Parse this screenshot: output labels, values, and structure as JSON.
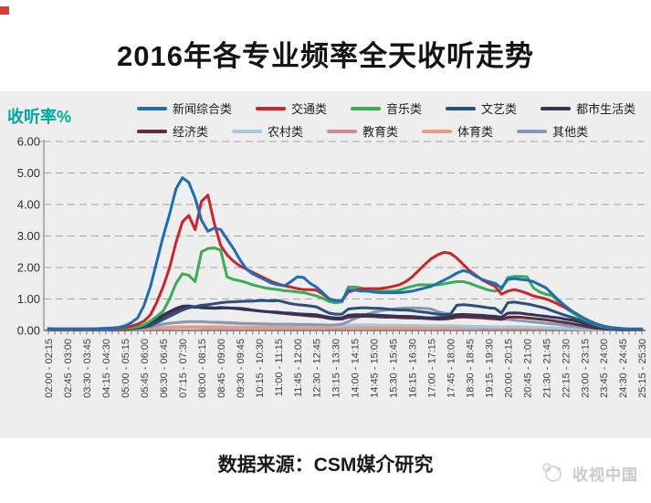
{
  "page": {
    "title": "2016年各专业频率全天收听走势",
    "y_axis_label": "收听率%",
    "source_note": "数据来源：CSM媒介研究",
    "watermark": "收视中国"
  },
  "chart_data": {
    "type": "line",
    "title": "2016年各专业频率全天收听走势",
    "ylabel": "收听率%",
    "ylim": [
      0,
      6
    ],
    "y_ticks": [
      "0.00",
      "1.00",
      "2.00",
      "3.00",
      "4.00",
      "5.00",
      "6.00"
    ],
    "grid": "horizontal-dashed",
    "legend_position": "top",
    "x_unit": "15-minute time slots from 02:00 to 25:30, tick label shown every 3rd point",
    "points_per_series": 94,
    "x_tick_labels": [
      "02:00 - 02:15",
      "02:45 - 03:00",
      "03:30 - 03:45",
      "04:15 - 04:30",
      "05:00 - 05:15",
      "05:45 - 06:00",
      "06:30 - 06:45",
      "07:15 - 07:30",
      "08:00 - 08:15",
      "08:45 - 09:00",
      "09:30 - 09:45",
      "10:15 - 10:30",
      "11:00 - 11:15",
      "11:45 - 12:00",
      "12:30 - 12:45",
      "13:15 - 13:30",
      "14:00 - 14:15",
      "14:45 - 15:00",
      "15:30 - 15:45",
      "16:15 - 16:30",
      "17:00 - 17:15",
      "17:45 - 18:00",
      "18:30 - 18:45",
      "19:15 - 19:30",
      "20:00 - 20:15",
      "20:45 - 21:00",
      "21:30 - 21:45",
      "22:15 - 22:30",
      "23:00 - 23:15",
      "23:45 - 24:00",
      "24:30 - 24:45",
      "25:15 - 25:30"
    ],
    "series": [
      {
        "id": "news",
        "name": "新闻综合类",
        "color": "#1E6CB4",
        "values": [
          0.06,
          0.05,
          0.05,
          0.05,
          0.05,
          0.05,
          0.05,
          0.05,
          0.06,
          0.07,
          0.08,
          0.1,
          0.15,
          0.25,
          0.4,
          0.8,
          1.4,
          2.2,
          3.0,
          3.7,
          4.5,
          4.85,
          4.7,
          4.2,
          3.5,
          3.15,
          3.25,
          3.2,
          2.9,
          2.6,
          2.25,
          1.95,
          1.8,
          1.7,
          1.6,
          1.5,
          1.45,
          1.42,
          1.55,
          1.7,
          1.68,
          1.5,
          1.38,
          1.2,
          1.0,
          0.95,
          0.95,
          1.28,
          1.28,
          1.25,
          1.25,
          1.22,
          1.2,
          1.2,
          1.2,
          1.2,
          1.22,
          1.25,
          1.3,
          1.35,
          1.4,
          1.5,
          1.6,
          1.7,
          1.82,
          1.9,
          1.85,
          1.72,
          1.62,
          1.55,
          1.5,
          1.35,
          1.62,
          1.65,
          1.62,
          1.6,
          1.55,
          1.45,
          1.35,
          1.15,
          0.95,
          0.78,
          0.62,
          0.5,
          0.38,
          0.28,
          0.2,
          0.14,
          0.1,
          0.08,
          0.06,
          0.05,
          0.05,
          0.05
        ]
      },
      {
        "id": "traffic",
        "name": "交通类",
        "color": "#C9252C",
        "values": [
          0.05,
          0.05,
          0.05,
          0.05,
          0.05,
          0.05,
          0.05,
          0.05,
          0.05,
          0.06,
          0.07,
          0.08,
          0.1,
          0.14,
          0.2,
          0.3,
          0.5,
          0.9,
          1.4,
          2.0,
          2.8,
          3.45,
          3.65,
          3.2,
          4.1,
          4.3,
          3.4,
          2.7,
          2.4,
          2.2,
          2.05,
          1.95,
          1.85,
          1.75,
          1.65,
          1.55,
          1.48,
          1.42,
          1.38,
          1.33,
          1.3,
          1.3,
          1.28,
          1.15,
          1.0,
          0.95,
          0.95,
          1.22,
          1.28,
          1.32,
          1.33,
          1.33,
          1.33,
          1.36,
          1.4,
          1.45,
          1.55,
          1.7,
          1.9,
          2.1,
          2.28,
          2.4,
          2.48,
          2.45,
          2.3,
          2.1,
          1.9,
          1.75,
          1.6,
          1.5,
          1.4,
          1.15,
          1.25,
          1.3,
          1.25,
          1.18,
          1.1,
          1.05,
          1.0,
          0.92,
          0.82,
          0.72,
          0.62,
          0.5,
          0.38,
          0.28,
          0.2,
          0.14,
          0.1,
          0.07,
          0.05,
          0.04,
          0.04,
          0.04
        ]
      },
      {
        "id": "music",
        "name": "音乐类",
        "color": "#3AAC53",
        "values": [
          0.04,
          0.04,
          0.04,
          0.04,
          0.04,
          0.04,
          0.04,
          0.04,
          0.04,
          0.04,
          0.05,
          0.05,
          0.06,
          0.08,
          0.12,
          0.18,
          0.3,
          0.45,
          0.62,
          1.0,
          1.5,
          1.8,
          1.75,
          1.55,
          2.5,
          2.6,
          2.62,
          2.55,
          1.7,
          1.62,
          1.58,
          1.52,
          1.45,
          1.4,
          1.35,
          1.32,
          1.3,
          1.26,
          1.25,
          1.22,
          1.2,
          1.15,
          1.1,
          1.02,
          0.92,
          0.88,
          0.9,
          1.38,
          1.38,
          1.35,
          1.3,
          1.28,
          1.25,
          1.25,
          1.25,
          1.28,
          1.35,
          1.4,
          1.45,
          1.45,
          1.45,
          1.45,
          1.48,
          1.52,
          1.55,
          1.55,
          1.5,
          1.42,
          1.35,
          1.28,
          1.25,
          1.3,
          1.68,
          1.72,
          1.72,
          1.7,
          1.35,
          1.22,
          1.15,
          1.1,
          0.9,
          0.72,
          0.58,
          0.45,
          0.35,
          0.26,
          0.18,
          0.12,
          0.08,
          0.06,
          0.05,
          0.04,
          0.04,
          0.04
        ]
      },
      {
        "id": "arts",
        "name": "文艺类",
        "color": "#2C4F79",
        "values": [
          0.03,
          0.03,
          0.03,
          0.03,
          0.03,
          0.03,
          0.03,
          0.03,
          0.03,
          0.03,
          0.03,
          0.03,
          0.04,
          0.05,
          0.07,
          0.1,
          0.15,
          0.25,
          0.35,
          0.45,
          0.55,
          0.65,
          0.72,
          0.76,
          0.8,
          0.82,
          0.85,
          0.88,
          0.9,
          0.91,
          0.92,
          0.93,
          0.93,
          0.95,
          0.95,
          0.94,
          0.95,
          0.9,
          0.85,
          0.82,
          0.8,
          0.78,
          0.75,
          0.65,
          0.55,
          0.52,
          0.52,
          0.68,
          0.7,
          0.72,
          0.72,
          0.7,
          0.7,
          0.68,
          0.66,
          0.65,
          0.65,
          0.63,
          0.6,
          0.58,
          0.55,
          0.52,
          0.5,
          0.52,
          0.8,
          0.82,
          0.8,
          0.78,
          0.75,
          0.72,
          0.7,
          0.55,
          0.88,
          0.9,
          0.87,
          0.84,
          0.8,
          0.75,
          0.7,
          0.62,
          0.55,
          0.48,
          0.42,
          0.35,
          0.28,
          0.2,
          0.14,
          0.1,
          0.07,
          0.05,
          0.04,
          0.03,
          0.03,
          0.03
        ]
      },
      {
        "id": "urban",
        "name": "都市生活类",
        "color": "#30345A",
        "values": [
          0.03,
          0.03,
          0.03,
          0.03,
          0.03,
          0.03,
          0.03,
          0.03,
          0.03,
          0.03,
          0.03,
          0.03,
          0.04,
          0.06,
          0.09,
          0.14,
          0.22,
          0.35,
          0.5,
          0.6,
          0.7,
          0.77,
          0.78,
          0.75,
          0.72,
          0.71,
          0.7,
          0.71,
          0.72,
          0.71,
          0.7,
          0.68,
          0.65,
          0.62,
          0.6,
          0.59,
          0.58,
          0.56,
          0.55,
          0.53,
          0.52,
          0.51,
          0.5,
          0.46,
          0.42,
          0.4,
          0.4,
          0.48,
          0.5,
          0.5,
          0.5,
          0.49,
          0.48,
          0.47,
          0.46,
          0.45,
          0.45,
          0.44,
          0.43,
          0.41,
          0.4,
          0.41,
          0.42,
          0.45,
          0.5,
          0.51,
          0.5,
          0.49,
          0.48,
          0.46,
          0.45,
          0.42,
          0.55,
          0.56,
          0.55,
          0.52,
          0.5,
          0.47,
          0.45,
          0.42,
          0.4,
          0.36,
          0.33,
          0.28,
          0.22,
          0.16,
          0.11,
          0.08,
          0.06,
          0.04,
          0.03,
          0.03,
          0.03,
          0.03
        ]
      },
      {
        "id": "economy",
        "name": "经济类",
        "color": "#5F2C38",
        "values": [
          0.02,
          0.02,
          0.02,
          0.02,
          0.02,
          0.02,
          0.02,
          0.02,
          0.02,
          0.02,
          0.02,
          0.02,
          0.03,
          0.05,
          0.08,
          0.12,
          0.2,
          0.32,
          0.45,
          0.55,
          0.65,
          0.72,
          0.75,
          0.73,
          0.75,
          0.73,
          0.72,
          0.73,
          0.72,
          0.7,
          0.68,
          0.66,
          0.64,
          0.62,
          0.6,
          0.58,
          0.56,
          0.54,
          0.52,
          0.5,
          0.48,
          0.46,
          0.45,
          0.42,
          0.38,
          0.36,
          0.36,
          0.42,
          0.44,
          0.45,
          0.45,
          0.44,
          0.43,
          0.42,
          0.42,
          0.41,
          0.4,
          0.4,
          0.39,
          0.38,
          0.37,
          0.36,
          0.36,
          0.38,
          0.42,
          0.43,
          0.42,
          0.41,
          0.4,
          0.38,
          0.37,
          0.35,
          0.42,
          0.43,
          0.42,
          0.4,
          0.38,
          0.36,
          0.34,
          0.31,
          0.28,
          0.25,
          0.22,
          0.18,
          0.14,
          0.1,
          0.07,
          0.05,
          0.04,
          0.03,
          0.02,
          0.02,
          0.02,
          0.02
        ]
      },
      {
        "id": "rural",
        "name": "农村类",
        "color": "#A5C8DB",
        "values": [
          0.02,
          0.02,
          0.02,
          0.02,
          0.02,
          0.02,
          0.02,
          0.02,
          0.02,
          0.02,
          0.02,
          0.03,
          0.04,
          0.06,
          0.08,
          0.1,
          0.14,
          0.18,
          0.21,
          0.23,
          0.25,
          0.26,
          0.27,
          0.27,
          0.27,
          0.26,
          0.25,
          0.24,
          0.23,
          0.22,
          0.22,
          0.21,
          0.21,
          0.2,
          0.2,
          0.2,
          0.19,
          0.19,
          0.19,
          0.18,
          0.18,
          0.18,
          0.17,
          0.16,
          0.15,
          0.15,
          0.15,
          0.17,
          0.18,
          0.18,
          0.18,
          0.18,
          0.17,
          0.17,
          0.17,
          0.17,
          0.16,
          0.16,
          0.16,
          0.15,
          0.15,
          0.15,
          0.15,
          0.15,
          0.15,
          0.14,
          0.14,
          0.13,
          0.13,
          0.12,
          0.12,
          0.11,
          0.12,
          0.12,
          0.12,
          0.11,
          0.1,
          0.1,
          0.09,
          0.08,
          0.08,
          0.07,
          0.06,
          0.05,
          0.04,
          0.04,
          0.03,
          0.03,
          0.02,
          0.02,
          0.02,
          0.02,
          0.02,
          0.02
        ]
      },
      {
        "id": "education",
        "name": "教育类",
        "color": "#D18B90",
        "values": [
          0.01,
          0.01,
          0.01,
          0.01,
          0.01,
          0.01,
          0.01,
          0.01,
          0.01,
          0.01,
          0.01,
          0.01,
          0.02,
          0.03,
          0.04,
          0.05,
          0.06,
          0.07,
          0.08,
          0.08,
          0.09,
          0.09,
          0.09,
          0.09,
          0.08,
          0.08,
          0.08,
          0.08,
          0.08,
          0.08,
          0.08,
          0.08,
          0.08,
          0.08,
          0.08,
          0.08,
          0.08,
          0.08,
          0.08,
          0.08,
          0.08,
          0.08,
          0.08,
          0.08,
          0.07,
          0.07,
          0.07,
          0.08,
          0.08,
          0.08,
          0.08,
          0.08,
          0.08,
          0.08,
          0.08,
          0.08,
          0.08,
          0.08,
          0.08,
          0.08,
          0.08,
          0.08,
          0.08,
          0.08,
          0.08,
          0.08,
          0.08,
          0.08,
          0.07,
          0.07,
          0.07,
          0.07,
          0.07,
          0.07,
          0.07,
          0.07,
          0.06,
          0.06,
          0.06,
          0.06,
          0.05,
          0.05,
          0.04,
          0.04,
          0.03,
          0.03,
          0.02,
          0.02,
          0.02,
          0.02,
          0.02,
          0.02,
          0.02,
          0.02
        ]
      },
      {
        "id": "sports",
        "name": "体育类",
        "color": "#EC9A80",
        "values": [
          0.02,
          0.02,
          0.02,
          0.02,
          0.02,
          0.02,
          0.02,
          0.02,
          0.02,
          0.02,
          0.02,
          0.02,
          0.03,
          0.04,
          0.05,
          0.06,
          0.08,
          0.09,
          0.1,
          0.11,
          0.12,
          0.12,
          0.12,
          0.12,
          0.12,
          0.12,
          0.12,
          0.12,
          0.11,
          0.11,
          0.11,
          0.11,
          0.11,
          0.11,
          0.11,
          0.11,
          0.11,
          0.11,
          0.11,
          0.11,
          0.11,
          0.11,
          0.11,
          0.1,
          0.1,
          0.1,
          0.1,
          0.11,
          0.11,
          0.11,
          0.11,
          0.11,
          0.11,
          0.11,
          0.11,
          0.11,
          0.11,
          0.11,
          0.11,
          0.11,
          0.11,
          0.11,
          0.11,
          0.11,
          0.1,
          0.1,
          0.1,
          0.1,
          0.1,
          0.1,
          0.1,
          0.09,
          0.09,
          0.09,
          0.09,
          0.09,
          0.08,
          0.08,
          0.08,
          0.08,
          0.07,
          0.07,
          0.06,
          0.06,
          0.05,
          0.05,
          0.04,
          0.04,
          0.03,
          0.03,
          0.03,
          0.03,
          0.03,
          0.03
        ]
      },
      {
        "id": "others",
        "name": "其他类",
        "color": "#8799B4",
        "values": [
          0.02,
          0.02,
          0.02,
          0.02,
          0.02,
          0.02,
          0.02,
          0.02,
          0.02,
          0.02,
          0.02,
          0.03,
          0.04,
          0.06,
          0.08,
          0.1,
          0.12,
          0.16,
          0.2,
          0.23,
          0.25,
          0.27,
          0.28,
          0.28,
          0.28,
          0.27,
          0.26,
          0.26,
          0.25,
          0.24,
          0.23,
          0.22,
          0.22,
          0.21,
          0.21,
          0.2,
          0.2,
          0.2,
          0.2,
          0.19,
          0.19,
          0.19,
          0.18,
          0.18,
          0.17,
          0.18,
          0.2,
          0.28,
          0.38,
          0.45,
          0.52,
          0.58,
          0.62,
          0.65,
          0.68,
          0.7,
          0.71,
          0.72,
          0.71,
          0.7,
          0.68,
          0.6,
          0.55,
          0.52,
          0.5,
          0.47,
          0.45,
          0.43,
          0.42,
          0.4,
          0.38,
          0.36,
          0.35,
          0.33,
          0.31,
          0.29,
          0.27,
          0.25,
          0.23,
          0.21,
          0.19,
          0.16,
          0.13,
          0.11,
          0.09,
          0.07,
          0.06,
          0.05,
          0.04,
          0.04,
          0.03,
          0.03,
          0.03,
          0.03
        ]
      }
    ]
  }
}
